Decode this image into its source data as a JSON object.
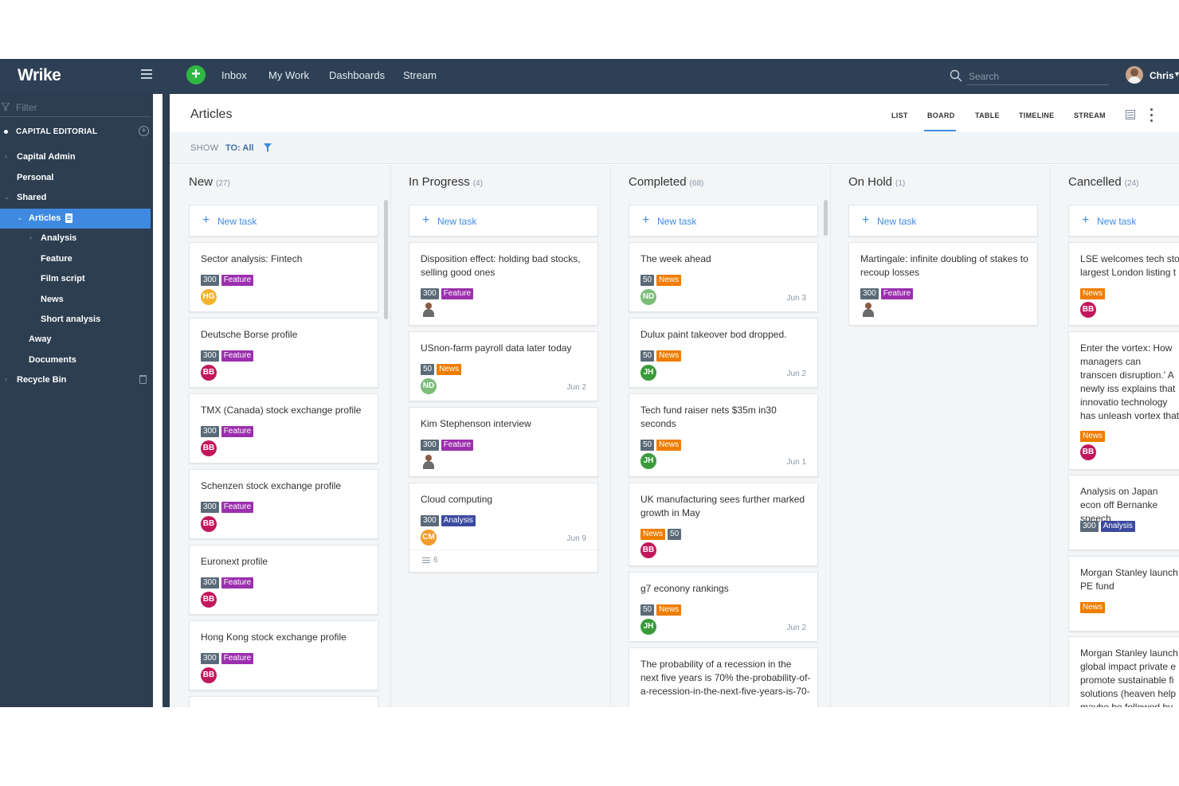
{
  "app": {
    "logo": "Wrike",
    "user_name": "Chris"
  },
  "topnav": {
    "items": [
      "Inbox",
      "My Work",
      "Dashboards",
      "Stream"
    ],
    "search_placeholder": "Search"
  },
  "sidebar": {
    "filter_placeholder": "Filter",
    "space": "CAPITAL EDITORIAL",
    "items": [
      {
        "label": "Capital Admin"
      },
      {
        "label": "Personal"
      },
      {
        "label": "Shared"
      },
      {
        "label": "Articles"
      },
      {
        "label": "Analysis"
      },
      {
        "label": "Feature"
      },
      {
        "label": "Film script"
      },
      {
        "label": "News"
      },
      {
        "label": "Short analysis"
      },
      {
        "label": "Away"
      },
      {
        "label": "Documents"
      },
      {
        "label": "Recycle Bin"
      }
    ]
  },
  "main": {
    "title": "Articles",
    "views": [
      "LIST",
      "BOARD",
      "TABLE",
      "TIMELINE",
      "STREAM"
    ],
    "active_view": "BOARD",
    "show_label": "SHOW",
    "show_filter": "TO: All",
    "new_task_label": "New task"
  },
  "colors": {
    "new": "#3f8ae0",
    "in_progress": "#3f8ae0",
    "completed": "#5fb85f",
    "on_hold": "#8a96a3",
    "cancelled": "#8a96a3"
  },
  "columns": [
    {
      "title": "New",
      "count": "(27)",
      "cards": [
        {
          "title": "Sector analysis: Fintech",
          "tags": [
            "300",
            "Feature"
          ],
          "avatar": "HG"
        },
        {
          "title": "Deutsche Borse profile",
          "tags": [
            "300",
            "Feature"
          ],
          "avatar": "BB"
        },
        {
          "title": "TMX (Canada) stock exchange profile",
          "tags": [
            "300",
            "Feature"
          ],
          "avatar": "BB"
        },
        {
          "title": "Schenzen stock exchange profile",
          "tags": [
            "300",
            "Feature"
          ],
          "avatar": "BB"
        },
        {
          "title": "Euronext profile",
          "tags": [
            "300",
            "Feature"
          ],
          "avatar": "BB"
        },
        {
          "title": "Hong Kong stock exchange profile",
          "tags": [
            "300",
            "Feature"
          ],
          "avatar": "BB"
        }
      ]
    },
    {
      "title": "In Progress",
      "count": "(4)",
      "cards": [
        {
          "title": "Disposition effect: holding bad stocks, selling good ones",
          "tags": [
            "300",
            "Feature"
          ],
          "avatar": "photo"
        },
        {
          "title": "USnon-farm payroll data later today",
          "tags": [
            "50",
            "News"
          ],
          "avatar": "ND",
          "date": "Jun 2"
        },
        {
          "title": "Kim Stephenson interview",
          "tags": [
            "300",
            "Feature"
          ],
          "avatar": "photo"
        },
        {
          "title": "Cloud computing",
          "tags": [
            "300",
            "Analysis"
          ],
          "avatar": "CM",
          "date": "Jun 9",
          "subtasks": "6"
        }
      ]
    },
    {
      "title": "Completed",
      "count": "(68)",
      "cards": [
        {
          "title": "The week ahead",
          "tags": [
            "50",
            "News"
          ],
          "avatar": "ND",
          "date": "Jun 3"
        },
        {
          "title": "Dulux paint takeover bod dropped.",
          "tags": [
            "50",
            "News"
          ],
          "avatar": "JH",
          "date": "Jun 2"
        },
        {
          "title": "Tech fund raiser nets $35m in30 seconds",
          "tags": [
            "50",
            "News"
          ],
          "avatar": "JH",
          "date": "Jun 1"
        },
        {
          "title": "UK manufacturing sees further marked growth in May",
          "tags": [
            "News",
            "50"
          ],
          "avatar": "BB"
        },
        {
          "title": "g7 econony rankings",
          "tags": [
            "50",
            "News"
          ],
          "avatar": "JH",
          "date": "Jun 2"
        },
        {
          "title": "The probability of a recession in the next five years is 70% the-probability-of-a-recession-in-the-next-five-years-is-70-"
        }
      ]
    },
    {
      "title": "On Hold",
      "count": "(1)",
      "cards": [
        {
          "title": "Martingale: infinite doubling of stakes to recoup losses",
          "tags": [
            "300",
            "Feature"
          ],
          "avatar": "photo"
        }
      ]
    },
    {
      "title": "Cancelled",
      "count": "(24)",
      "cards": [
        {
          "title": "LSE welcomes tech sto largest London listing t",
          "tags": [
            "News"
          ],
          "avatar": "BB"
        },
        {
          "title": "Enter the vortex: How managers can transcen disruption.' A newly iss explains that innovatio technology has unleash vortex that promises to",
          "tags": [
            "News"
          ],
          "avatar": "BB"
        },
        {
          "title": "Analysis on Japan econ off Bernanke speech",
          "tags": [
            "300",
            "Analysis"
          ]
        },
        {
          "title": "Morgan Stanley launch PE fund",
          "tags": [
            "News"
          ]
        },
        {
          "title": "Morgan Stanley launch global impact private e promote sustainable fi solutions (heaven help maybe be followed by"
        }
      ]
    }
  ]
}
